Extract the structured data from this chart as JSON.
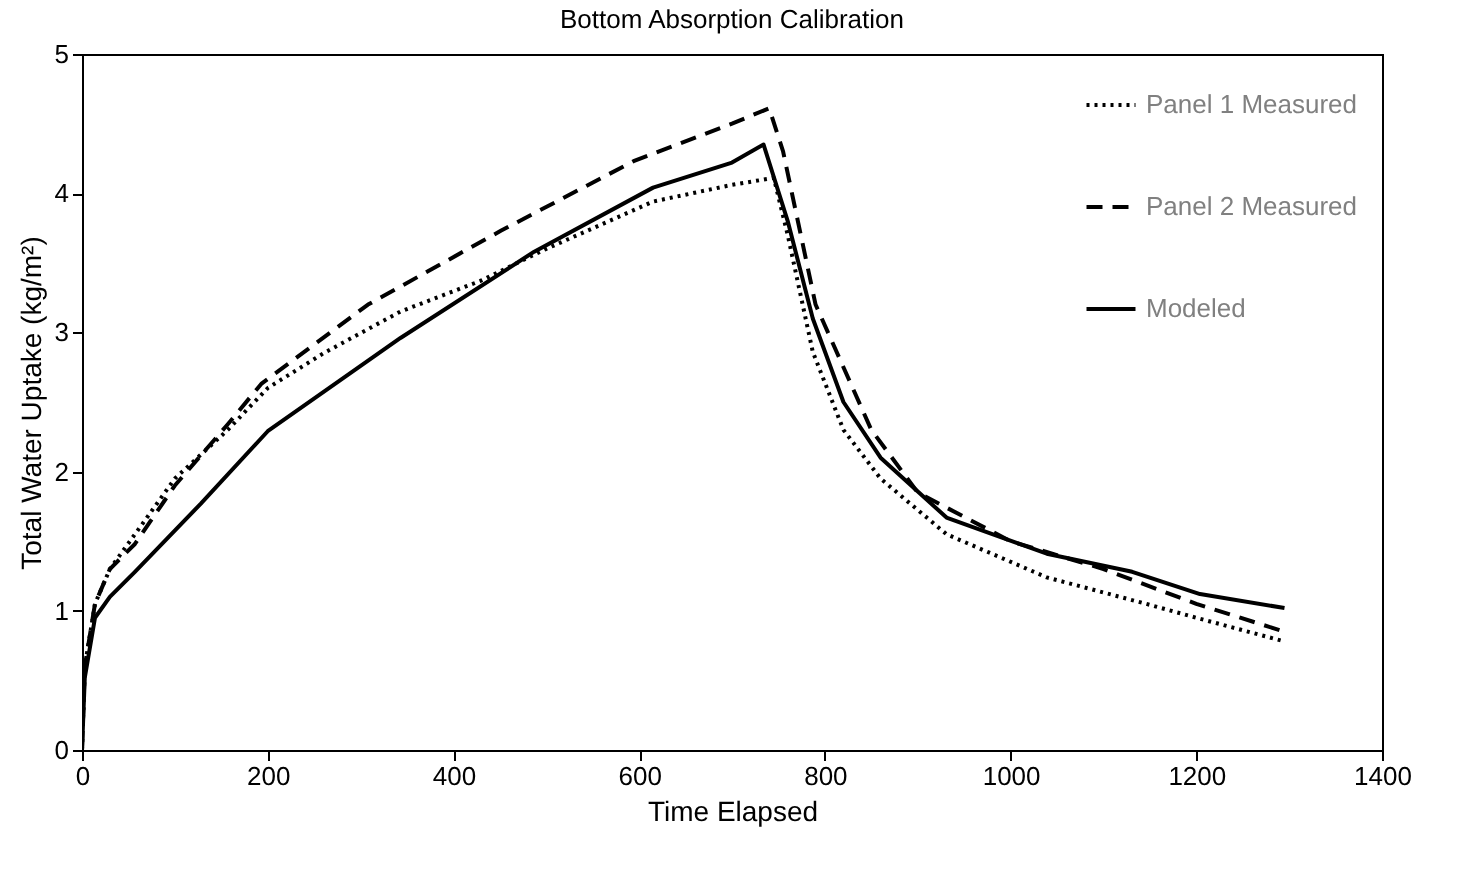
{
  "chart_data": {
    "type": "line",
    "title": "Bottom Absorption Calibration",
    "xlabel": "Time Elapsed",
    "ylabel": "Total Water Uptake (kg/m²)",
    "xlim": [
      0,
      1400
    ],
    "xticks": [
      0,
      200,
      400,
      600,
      800,
      1000,
      1200,
      1400
    ],
    "ylim": [
      0,
      5
    ],
    "yticks": [
      0,
      1,
      2,
      3,
      4,
      5
    ],
    "grid": false,
    "legend": "top right",
    "marker": "none",
    "series": [
      {
        "name": "Panel 1 Measured",
        "color": "#000000",
        "line_style": "dotted",
        "x": [
          0,
          3,
          14,
          30,
          57,
          100,
          157,
          200,
          260,
          343,
          429,
          500,
          615,
          700,
          745,
          760,
          787,
          820,
          860,
          931,
          1039,
          1146,
          1200,
          1295
        ],
        "values": [
          0,
          0.6,
          1.05,
          1.3,
          1.55,
          1.95,
          2.3,
          2.6,
          2.85,
          3.15,
          3.37,
          3.6,
          3.94,
          4.06,
          4.11,
          3.7,
          2.86,
          2.3,
          1.95,
          1.55,
          1.24,
          1.05,
          0.95,
          0.78
        ]
      },
      {
        "name": "Panel 2 Measured",
        "color": "#000000",
        "line_style": "dashed",
        "x": [
          0,
          3,
          14,
          30,
          57,
          100,
          157,
          193,
          308,
          451,
          594,
          700,
          740,
          755,
          790,
          850,
          900,
          1000,
          1100,
          1200,
          1295
        ],
        "values": [
          0,
          0.6,
          1.05,
          1.3,
          1.48,
          1.9,
          2.34,
          2.63,
          3.2,
          3.73,
          4.23,
          4.5,
          4.61,
          4.3,
          3.2,
          2.3,
          1.85,
          1.5,
          1.3,
          1.05,
          0.85
        ]
      },
      {
        "name": "Modeled",
        "color": "#000000",
        "line_style": "solid",
        "x": [
          0,
          3,
          14,
          30,
          57,
          128,
          200,
          343,
          487,
          615,
          700,
          734,
          760,
          787,
          820,
          860,
          931,
          1039,
          1131,
          1204,
          1295
        ],
        "values": [
          0,
          0.52,
          0.95,
          1.1,
          1.28,
          1.77,
          2.29,
          2.96,
          3.58,
          4.04,
          4.22,
          4.35,
          3.8,
          3.1,
          2.5,
          2.1,
          1.67,
          1.41,
          1.28,
          1.12,
          1.02
        ]
      }
    ]
  }
}
